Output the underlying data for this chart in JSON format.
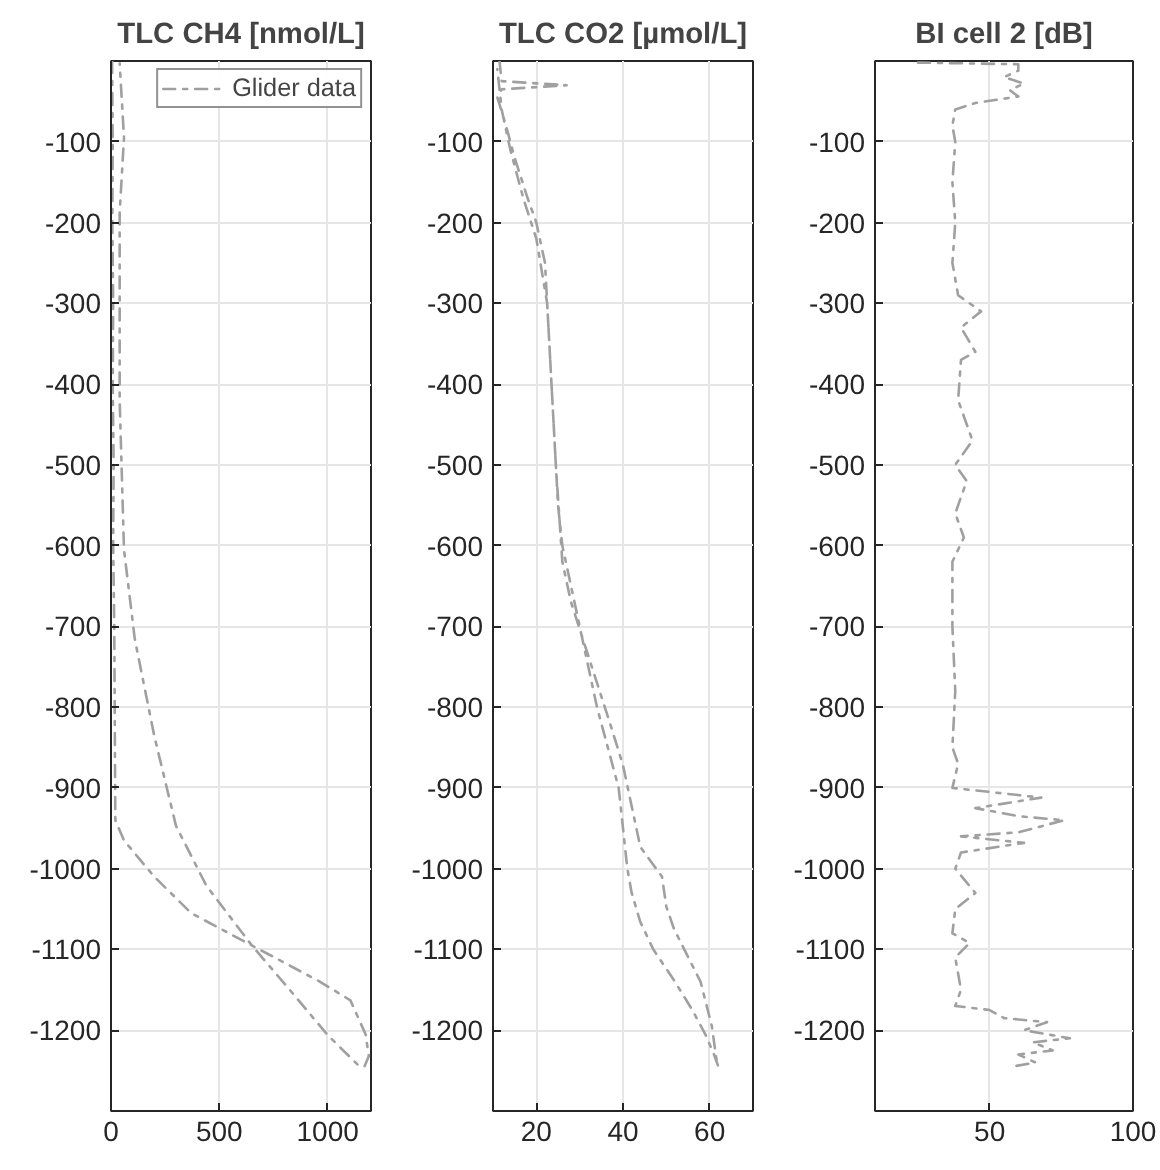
{
  "chart_data": [
    {
      "type": "line",
      "title": "TLC CH4 [nmol/L]",
      "xlim": [
        0,
        1200
      ],
      "xticks": [
        0,
        500,
        1000
      ],
      "ylim": [
        -1300,
        0
      ],
      "yticks": [
        -100,
        -200,
        -300,
        -400,
        -500,
        -600,
        -700,
        -800,
        -900,
        -1000,
        -1100,
        -1200
      ],
      "grid": true,
      "legend": "top right",
      "line_style": "dashed",
      "series": [
        {
          "name": "Glider data",
          "color": "#a0a0a0",
          "x": [
            5,
            8,
            6,
            10,
            8,
            12,
            10,
            15,
            20,
            60,
            200,
            370,
            510,
            720,
            965,
            1105,
            1175,
            1190,
            1170,
            1140,
            1000,
            825,
            650,
            440,
            300,
            200,
            110,
            60,
            40,
            40,
            60,
            40
          ],
          "values": [
            0,
            -100,
            -200,
            -300,
            -400,
            -500,
            -600,
            -700,
            -940,
            -965,
            -1010,
            -1055,
            -1075,
            -1105,
            -1140,
            -1163,
            -1205,
            -1232,
            -1245,
            -1243,
            -1206,
            -1150,
            -1095,
            -1021,
            -947,
            -836,
            -716,
            -605,
            -420,
            -188,
            -95,
            -3
          ]
        }
      ]
    },
    {
      "type": "line",
      "title": "TLC CO2 [µmol/L]",
      "xlim": [
        10,
        70
      ],
      "xticks": [
        20,
        40,
        60
      ],
      "ylim": [
        -1300,
        0
      ],
      "yticks": [
        -100,
        -200,
        -300,
        -400,
        -500,
        -600,
        -700,
        -800,
        -900,
        -1000,
        -1100,
        -1200
      ],
      "grid": true,
      "line_style": "dashed",
      "series": [
        {
          "color": "#a0a0a0",
          "x": [
            11.5,
            12,
            27,
            12,
            11,
            13,
            15,
            18,
            20,
            22,
            23,
            24,
            25,
            26,
            28,
            30,
            32,
            34,
            37,
            39,
            40,
            41,
            42,
            44,
            47,
            52,
            56,
            59,
            61,
            62,
            61.7,
            60.5,
            57.9,
            51.8,
            50,
            49,
            44,
            40,
            37,
            34,
            31,
            28,
            26,
            24.5,
            23.5,
            22.5,
            20,
            17,
            14,
            12,
            11
          ],
          "values": [
            0,
            -25,
            -30,
            -35,
            -45,
            -80,
            -120,
            -170,
            -200,
            -250,
            -350,
            -450,
            -550,
            -600,
            -650,
            -700,
            -750,
            -800,
            -860,
            -900,
            -950,
            -1000,
            -1030,
            -1066,
            -1100,
            -1140,
            -1175,
            -1205,
            -1230,
            -1245,
            -1241,
            -1195,
            -1140,
            -1075,
            -1047,
            -1010,
            -973,
            -872,
            -820,
            -770,
            -720,
            -670,
            -620,
            -500,
            -400,
            -300,
            -220,
            -170,
            -110,
            -60,
            -10
          ]
        }
      ]
    },
    {
      "type": "line",
      "title": "BI cell 2 [dB]",
      "xlim": [
        10,
        100
      ],
      "xticks": [
        50,
        100
      ],
      "ylim": [
        -1300,
        0
      ],
      "yticks": [
        -100,
        -200,
        -300,
        -400,
        -500,
        -600,
        -700,
        -800,
        -900,
        -1000,
        -1100,
        -1200
      ],
      "grid": true,
      "line_style": "dashed",
      "series": [
        {
          "color": "#a0a0a0",
          "x": [
            25,
            60,
            60,
            55,
            62,
            57,
            60,
            45,
            38,
            37,
            38,
            37,
            38,
            37,
            39,
            47,
            40,
            45,
            40,
            39,
            44,
            38,
            42,
            38,
            41,
            37,
            37,
            38,
            37,
            39,
            37,
            50,
            68,
            45,
            60,
            76,
            60,
            40,
            62,
            40,
            38,
            45,
            38,
            37,
            43,
            38,
            40,
            38,
            50,
            55,
            70,
            62,
            78,
            65,
            72,
            60,
            66,
            58
          ],
          "values": [
            -2,
            -4,
            -12,
            -20,
            -28,
            -36,
            -44,
            -52,
            -60,
            -80,
            -100,
            -150,
            -200,
            -250,
            -290,
            -310,
            -330,
            -360,
            -370,
            -420,
            -470,
            -500,
            -520,
            -560,
            -590,
            -620,
            -700,
            -780,
            -850,
            -870,
            -900,
            -905,
            -912,
            -925,
            -935,
            -940,
            -955,
            -960,
            -968,
            -980,
            -1000,
            -1030,
            -1050,
            -1080,
            -1092,
            -1110,
            -1150,
            -1170,
            -1175,
            -1185,
            -1190,
            -1200,
            -1210,
            -1215,
            -1225,
            -1230,
            -1240,
            -1245
          ]
        }
      ]
    }
  ]
}
